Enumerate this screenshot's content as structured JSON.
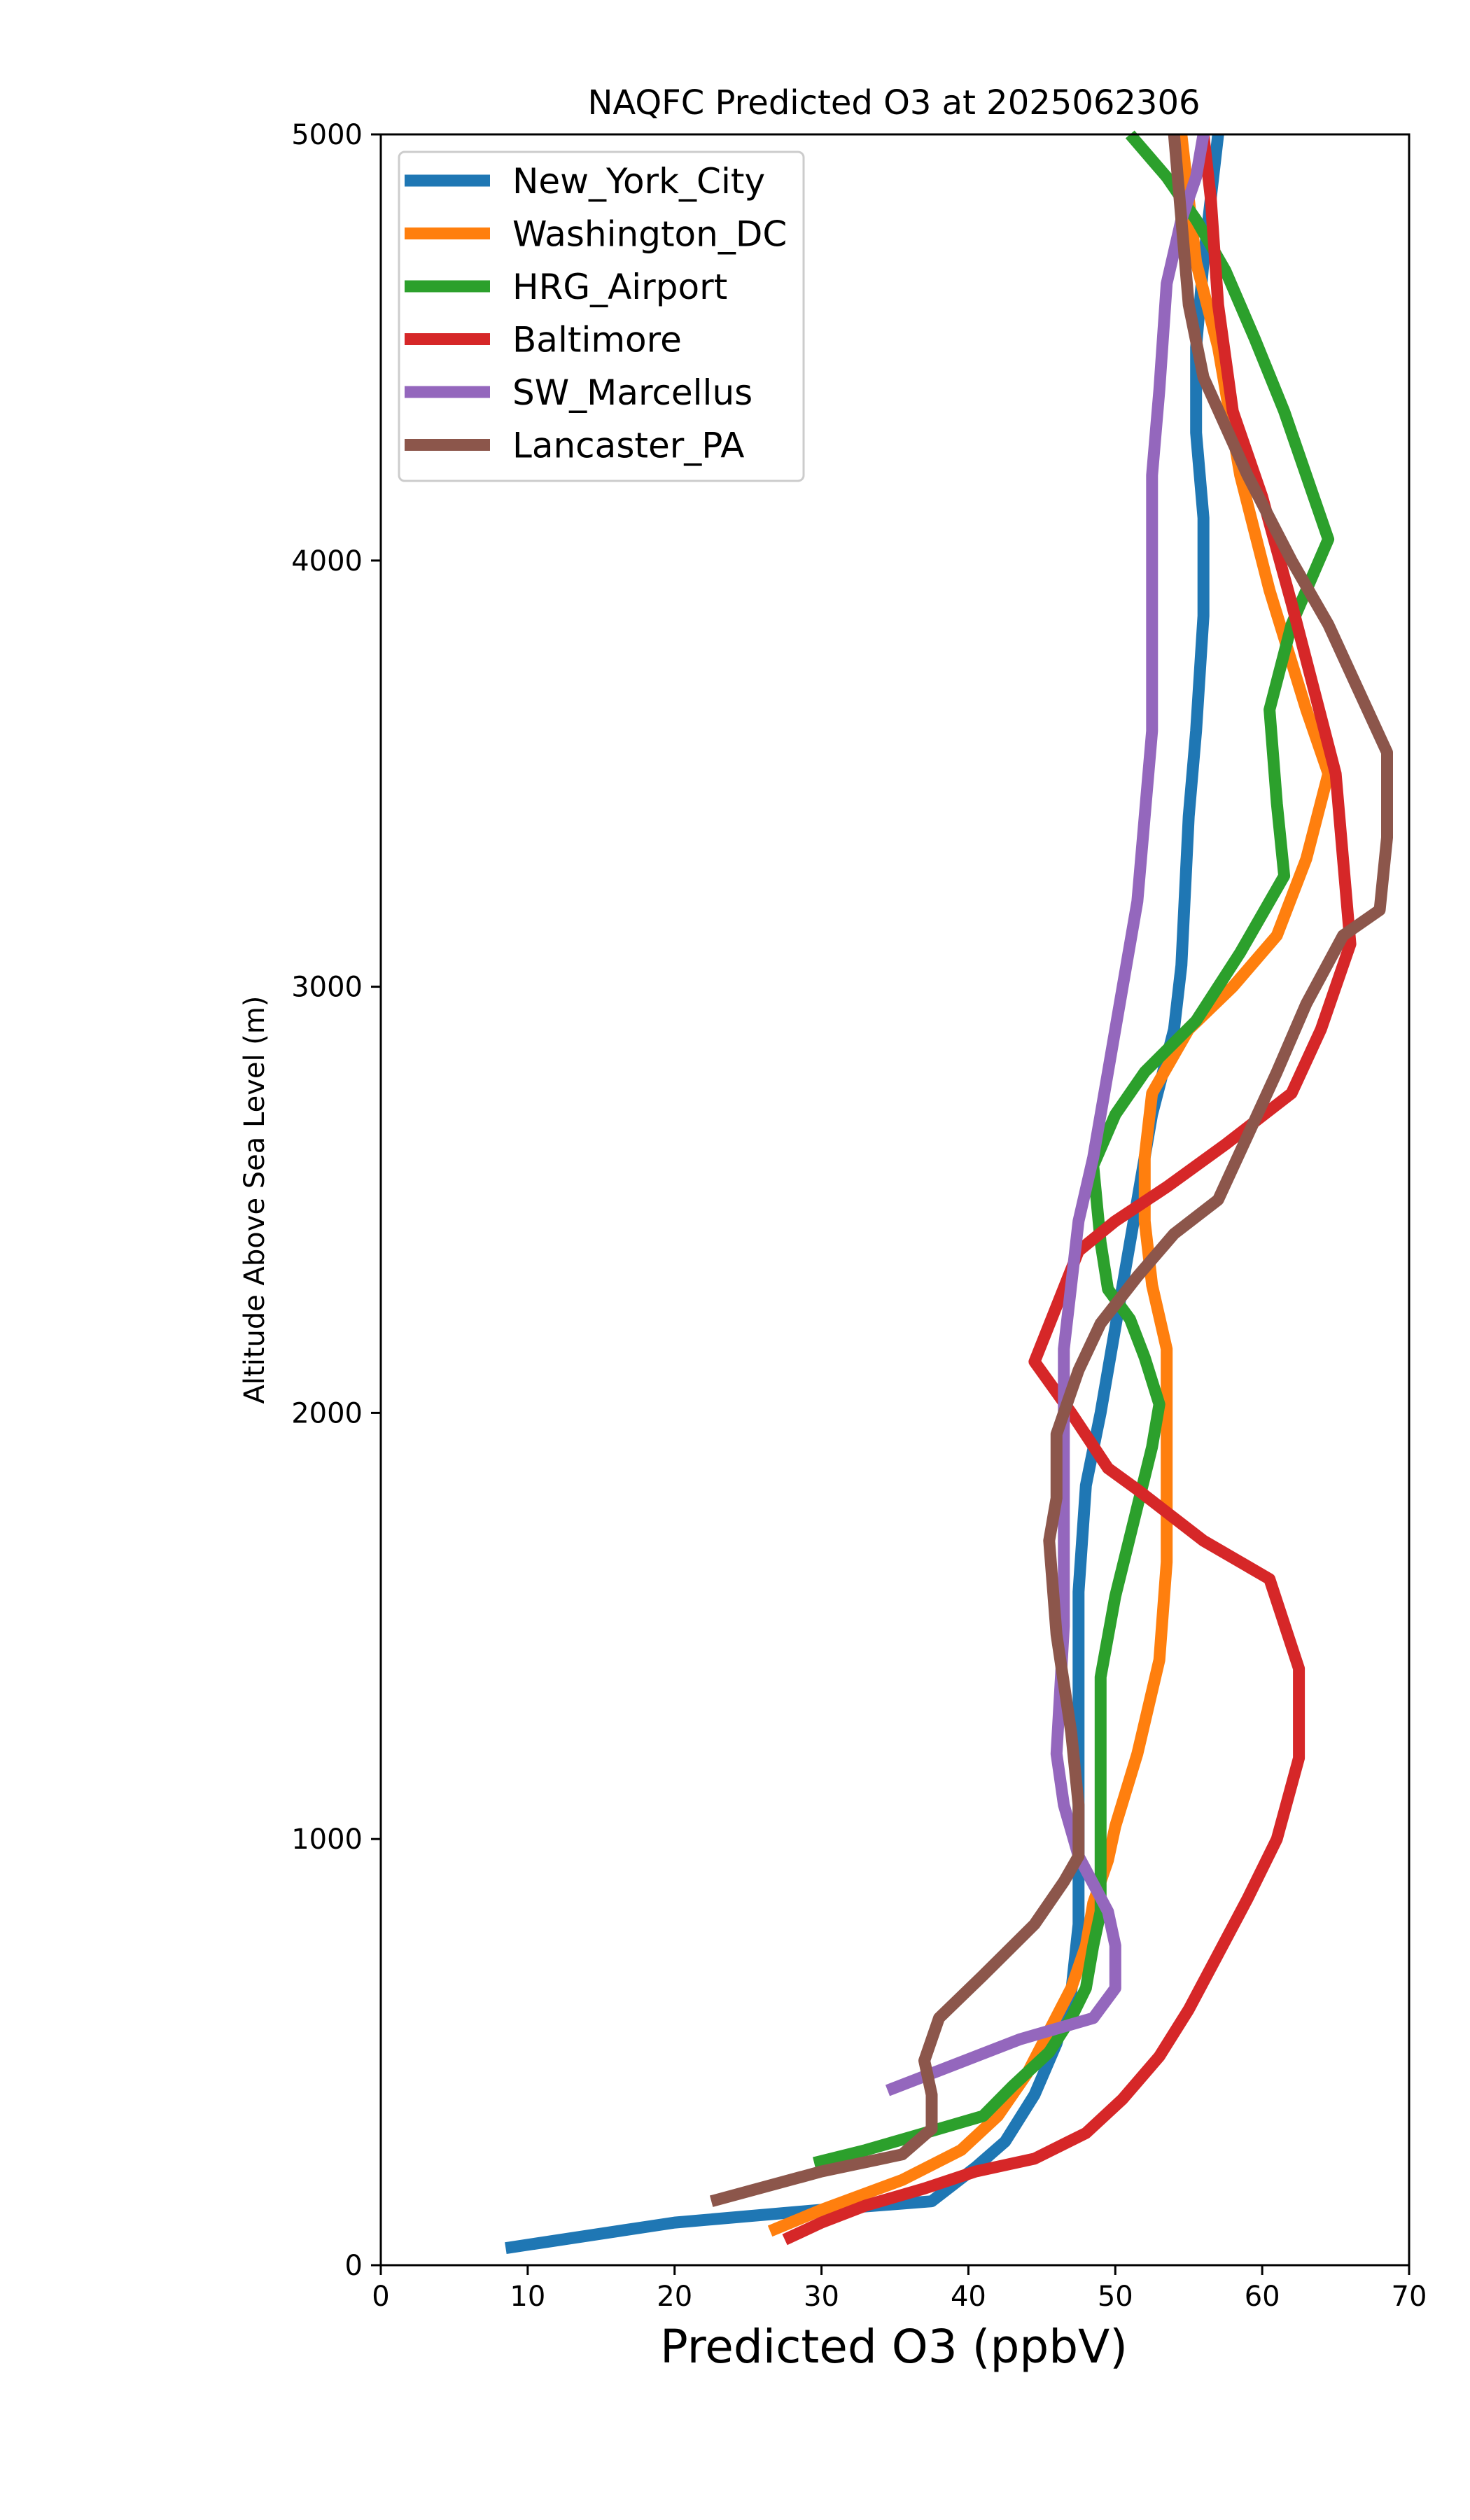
{
  "chart_data": {
    "type": "line",
    "title": "NAQFC Predicted O3 at 2025062306",
    "xlabel": "Predicted O3 (ppbV)",
    "ylabel": "Altitude Above Sea Level (m)",
    "xlim": [
      0,
      70
    ],
    "ylim": [
      0,
      5000
    ],
    "xticks": [
      0,
      10,
      20,
      30,
      40,
      50,
      60,
      70
    ],
    "yticks": [
      0,
      1000,
      2000,
      3000,
      4000,
      5000
    ],
    "grid": false,
    "legend_position": "top-left",
    "series": [
      {
        "name": "New_York_City",
        "color": "#1f77b4",
        "points": [
          [
            8.5,
            40
          ],
          [
            20,
            100
          ],
          [
            30,
            130
          ],
          [
            37.5,
            150
          ],
          [
            40.5,
            230
          ],
          [
            42.5,
            290
          ],
          [
            44.5,
            400
          ],
          [
            46,
            520
          ],
          [
            47,
            640
          ],
          [
            47.5,
            800
          ],
          [
            47.5,
            960
          ],
          [
            47.5,
            1200
          ],
          [
            47.5,
            1400
          ],
          [
            47.5,
            1580
          ],
          [
            48,
            1830
          ],
          [
            49,
            2000
          ],
          [
            50,
            2200
          ],
          [
            51,
            2400
          ],
          [
            52.5,
            2700
          ],
          [
            54,
            2900
          ],
          [
            54.5,
            3050
          ],
          [
            55,
            3400
          ],
          [
            55.5,
            3600
          ],
          [
            56,
            3870
          ],
          [
            56,
            4100
          ],
          [
            55.5,
            4300
          ],
          [
            55.5,
            4500
          ],
          [
            56,
            4700
          ],
          [
            56.5,
            4850
          ],
          [
            57,
            5000
          ]
        ]
      },
      {
        "name": "Washington_DC",
        "color": "#ff7f0e",
        "points": [
          [
            26.5,
            80
          ],
          [
            30,
            130
          ],
          [
            35.5,
            200
          ],
          [
            39.5,
            270
          ],
          [
            42,
            350
          ],
          [
            44,
            450
          ],
          [
            45.5,
            550
          ],
          [
            47,
            650
          ],
          [
            48,
            750
          ],
          [
            48.5,
            850
          ],
          [
            49.5,
            950
          ],
          [
            50,
            1030
          ],
          [
            51.5,
            1200
          ],
          [
            53,
            1420
          ],
          [
            53.5,
            1650
          ],
          [
            53.5,
            1850
          ],
          [
            53.5,
            2150
          ],
          [
            52.5,
            2300
          ],
          [
            52,
            2450
          ],
          [
            52,
            2600
          ],
          [
            52.5,
            2750
          ],
          [
            55,
            2900
          ],
          [
            58,
            3000
          ],
          [
            61,
            3120
          ],
          [
            63,
            3300
          ],
          [
            64.5,
            3500
          ],
          [
            63,
            3650
          ],
          [
            60.5,
            3930
          ],
          [
            58.5,
            4200
          ],
          [
            57,
            4500
          ],
          [
            55.5,
            4700
          ],
          [
            55,
            4850
          ],
          [
            54.5,
            5000
          ]
        ]
      },
      {
        "name": "HRG_Airport",
        "color": "#2ca02c",
        "points": [
          [
            29.5,
            240
          ],
          [
            33,
            270
          ],
          [
            37,
            310
          ],
          [
            41,
            350
          ],
          [
            43,
            420
          ],
          [
            45.5,
            500
          ],
          [
            47,
            580
          ],
          [
            48,
            650
          ],
          [
            48.5,
            750
          ],
          [
            49,
            830
          ],
          [
            49,
            1000
          ],
          [
            49,
            1200
          ],
          [
            49,
            1380
          ],
          [
            50,
            1570
          ],
          [
            51.5,
            1780
          ],
          [
            52.5,
            1920
          ],
          [
            53,
            2020
          ],
          [
            52,
            2130
          ],
          [
            51,
            2220
          ],
          [
            49.5,
            2290
          ],
          [
            49,
            2400
          ],
          [
            48.5,
            2580
          ],
          [
            50,
            2700
          ],
          [
            52,
            2800
          ],
          [
            55.5,
            2920
          ],
          [
            58.5,
            3080
          ],
          [
            61.5,
            3260
          ],
          [
            61,
            3430
          ],
          [
            60.5,
            3650
          ],
          [
            62,
            3850
          ],
          [
            64.5,
            4050
          ],
          [
            63.5,
            4150
          ],
          [
            61.5,
            4350
          ],
          [
            59.5,
            4520
          ],
          [
            57.5,
            4680
          ],
          [
            55.5,
            4800
          ],
          [
            53.5,
            4900
          ],
          [
            51,
            5000
          ]
        ]
      },
      {
        "name": "Baltimore",
        "color": "#d62728",
        "points": [
          [
            27.5,
            60
          ],
          [
            30,
            100
          ],
          [
            33,
            140
          ],
          [
            37,
            180
          ],
          [
            40.5,
            220
          ],
          [
            44.5,
            250
          ],
          [
            48,
            310
          ],
          [
            50.5,
            390
          ],
          [
            53,
            490
          ],
          [
            55,
            600
          ],
          [
            57,
            730
          ],
          [
            59,
            860
          ],
          [
            61,
            1000
          ],
          [
            62.5,
            1190
          ],
          [
            62.5,
            1400
          ],
          [
            60.5,
            1610
          ],
          [
            56,
            1700
          ],
          [
            51.5,
            1820
          ],
          [
            49.5,
            1870
          ],
          [
            47,
            2000
          ],
          [
            44.5,
            2120
          ],
          [
            46,
            2250
          ],
          [
            47.5,
            2380
          ],
          [
            50,
            2450
          ],
          [
            53.5,
            2530
          ],
          [
            57.5,
            2630
          ],
          [
            62,
            2750
          ],
          [
            64,
            2900
          ],
          [
            66,
            3100
          ],
          [
            65.5,
            3300
          ],
          [
            65,
            3500
          ],
          [
            63.5,
            3700
          ],
          [
            62,
            3900
          ],
          [
            60,
            4150
          ],
          [
            58,
            4350
          ],
          [
            57,
            4600
          ],
          [
            56.5,
            4850
          ],
          [
            56,
            5000
          ]
        ]
      },
      {
        "name": "SW_Marcellus",
        "color": "#9467bd",
        "points": [
          [
            34.5,
            410
          ],
          [
            39,
            470
          ],
          [
            43.5,
            530
          ],
          [
            48.5,
            580
          ],
          [
            50,
            650
          ],
          [
            50,
            750
          ],
          [
            49.5,
            830
          ],
          [
            47.5,
            960
          ],
          [
            46.5,
            1080
          ],
          [
            46,
            1200
          ],
          [
            46.5,
            1500
          ],
          [
            46.5,
            1800
          ],
          [
            46.5,
            2000
          ],
          [
            46.5,
            2150
          ],
          [
            47,
            2300
          ],
          [
            47.5,
            2450
          ],
          [
            48.5,
            2600
          ],
          [
            49.5,
            2800
          ],
          [
            50.5,
            3000
          ],
          [
            51.5,
            3200
          ],
          [
            52,
            3400
          ],
          [
            52.5,
            3600
          ],
          [
            52.5,
            3900
          ],
          [
            52.5,
            4200
          ],
          [
            53,
            4400
          ],
          [
            53.5,
            4650
          ],
          [
            54.5,
            4800
          ],
          [
            55.5,
            4900
          ],
          [
            56,
            5000
          ]
        ]
      },
      {
        "name": "Lancaster_PA",
        "color": "#8c564b",
        "points": [
          [
            22.5,
            150
          ],
          [
            30,
            220
          ],
          [
            35.5,
            260
          ],
          [
            37.5,
            320
          ],
          [
            37.5,
            400
          ],
          [
            37,
            480
          ],
          [
            38,
            580
          ],
          [
            41,
            680
          ],
          [
            44.5,
            800
          ],
          [
            46.5,
            900
          ],
          [
            47.5,
            960
          ],
          [
            47.5,
            1080
          ],
          [
            47,
            1250
          ],
          [
            46,
            1480
          ],
          [
            45.5,
            1700
          ],
          [
            46,
            1800
          ],
          [
            46,
            1950
          ],
          [
            47.5,
            2100
          ],
          [
            49,
            2210
          ],
          [
            51.5,
            2320
          ],
          [
            54,
            2420
          ],
          [
            57,
            2500
          ],
          [
            59,
            2650
          ],
          [
            61,
            2800
          ],
          [
            63,
            2960
          ],
          [
            65.5,
            3120
          ],
          [
            68,
            3180
          ],
          [
            68.5,
            3350
          ],
          [
            68.5,
            3550
          ],
          [
            66.5,
            3700
          ],
          [
            64.5,
            3850
          ],
          [
            62,
            4000
          ],
          [
            59,
            4200
          ],
          [
            56,
            4430
          ],
          [
            55,
            4600
          ],
          [
            54.5,
            4800
          ],
          [
            54,
            5000
          ]
        ]
      }
    ]
  }
}
